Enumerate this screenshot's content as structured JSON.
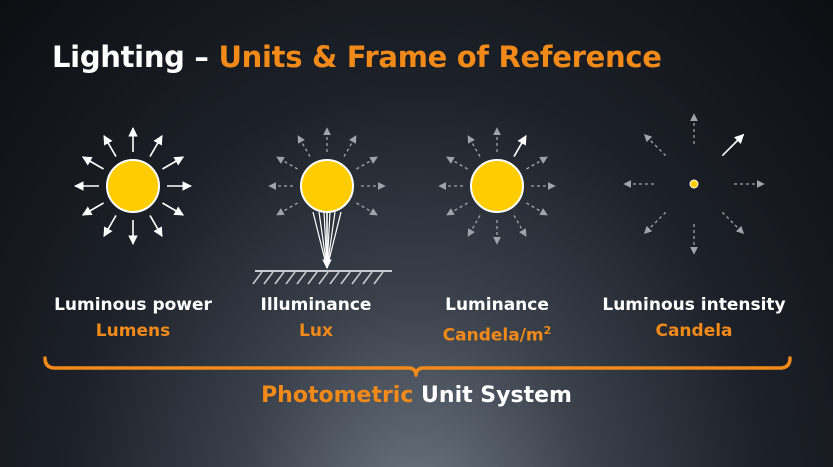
{
  "title": {
    "main": "Lighting – ",
    "accent": "Units & Frame of Reference"
  },
  "items": [
    {
      "name": "Luminous power",
      "unit": "Lumens"
    },
    {
      "name": "Illuminance",
      "unit": "Lux"
    },
    {
      "name": "Luminance",
      "unit": "Candela/m",
      "unit_sup": "2"
    },
    {
      "name": "Luminous intensity",
      "unit": "Candela"
    }
  ],
  "footer": {
    "accent": "Photometric",
    "rest": " Unit System"
  },
  "colors": {
    "accent": "#f28a1a",
    "sun": "#ffcc00",
    "text": "#ffffff"
  }
}
